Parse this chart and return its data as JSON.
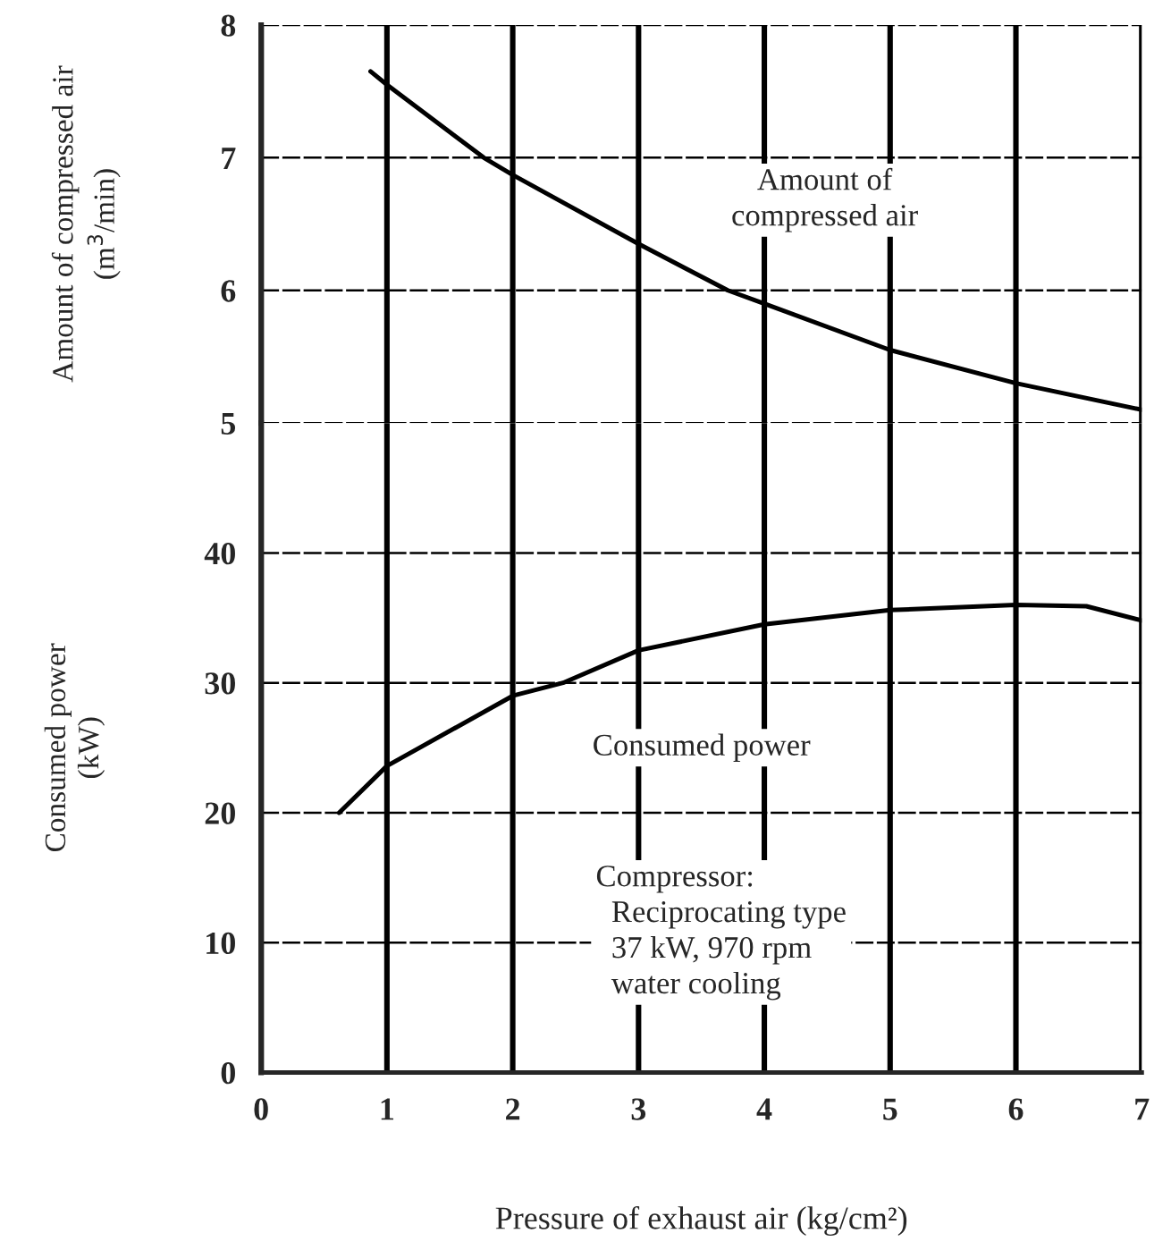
{
  "chart_data": [
    {
      "type": "line",
      "ylabel": "Amount of compressed air\n(m$^{3}$/min)",
      "xlim": [
        0,
        7
      ],
      "xticks": [
        0,
        1,
        2,
        3,
        4,
        5,
        6,
        7
      ],
      "ylim": [
        5,
        8
      ],
      "yticks": [
        5,
        6,
        7,
        8
      ],
      "tick_labels": "y",
      "grid": true,
      "legend": false,
      "series": [
        {
          "color": "#000000",
          "x": [
            0.87,
            1,
            1.77,
            2,
            3,
            3.71,
            4,
            5,
            6,
            7
          ],
          "values": [
            7.65,
            7.55,
            7.0,
            6.87,
            6.35,
            6.0,
            5.9,
            5.55,
            5.3,
            5.1
          ]
        }
      ],
      "annotations": [
        "Amount of\ncompressed air"
      ]
    },
    {
      "type": "line",
      "ylabel": "Consumed power\n(kW)",
      "xlabel": "Pressure of exhaust air (kg/cm²)",
      "xlim": [
        0,
        7
      ],
      "xticks": [
        0,
        1,
        2,
        3,
        4,
        5,
        6,
        7
      ],
      "ylim": [
        0,
        50
      ],
      "yticks": [
        0,
        10,
        20,
        30,
        40
      ],
      "grid": true,
      "legend": false,
      "series": [
        {
          "color": "#000000",
          "x": [
            0.62,
            1,
            2,
            2.4,
            3,
            4,
            5,
            6,
            6.56,
            7
          ],
          "values": [
            20,
            23.6,
            29.0,
            30,
            32.5,
            34.5,
            35.6,
            36.0,
            35.9,
            34.8
          ]
        }
      ],
      "annotations": [
        "Consumed power",
        "Compressor:\n  Reciprocating type\n  37 kW, 970 rpm\n  water cooling"
      ]
    }
  ]
}
